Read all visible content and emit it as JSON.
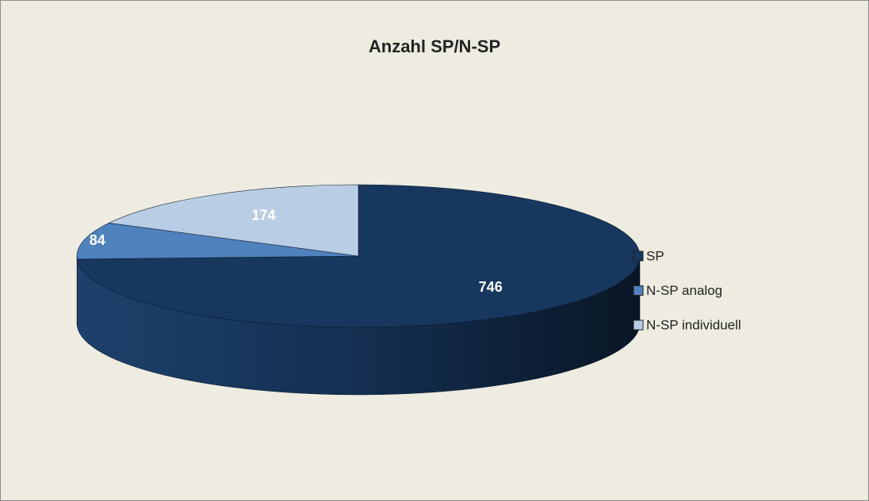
{
  "chart_data": {
    "type": "pie",
    "title": "Anzahl SP/N-SP",
    "categories": [
      "SP",
      "N-SP analog",
      "N-SP individuell"
    ],
    "values": [
      746,
      84,
      174
    ],
    "colors": [
      "#17375e",
      "#4f81bd",
      "#b9cde5"
    ],
    "legend": "right"
  }
}
